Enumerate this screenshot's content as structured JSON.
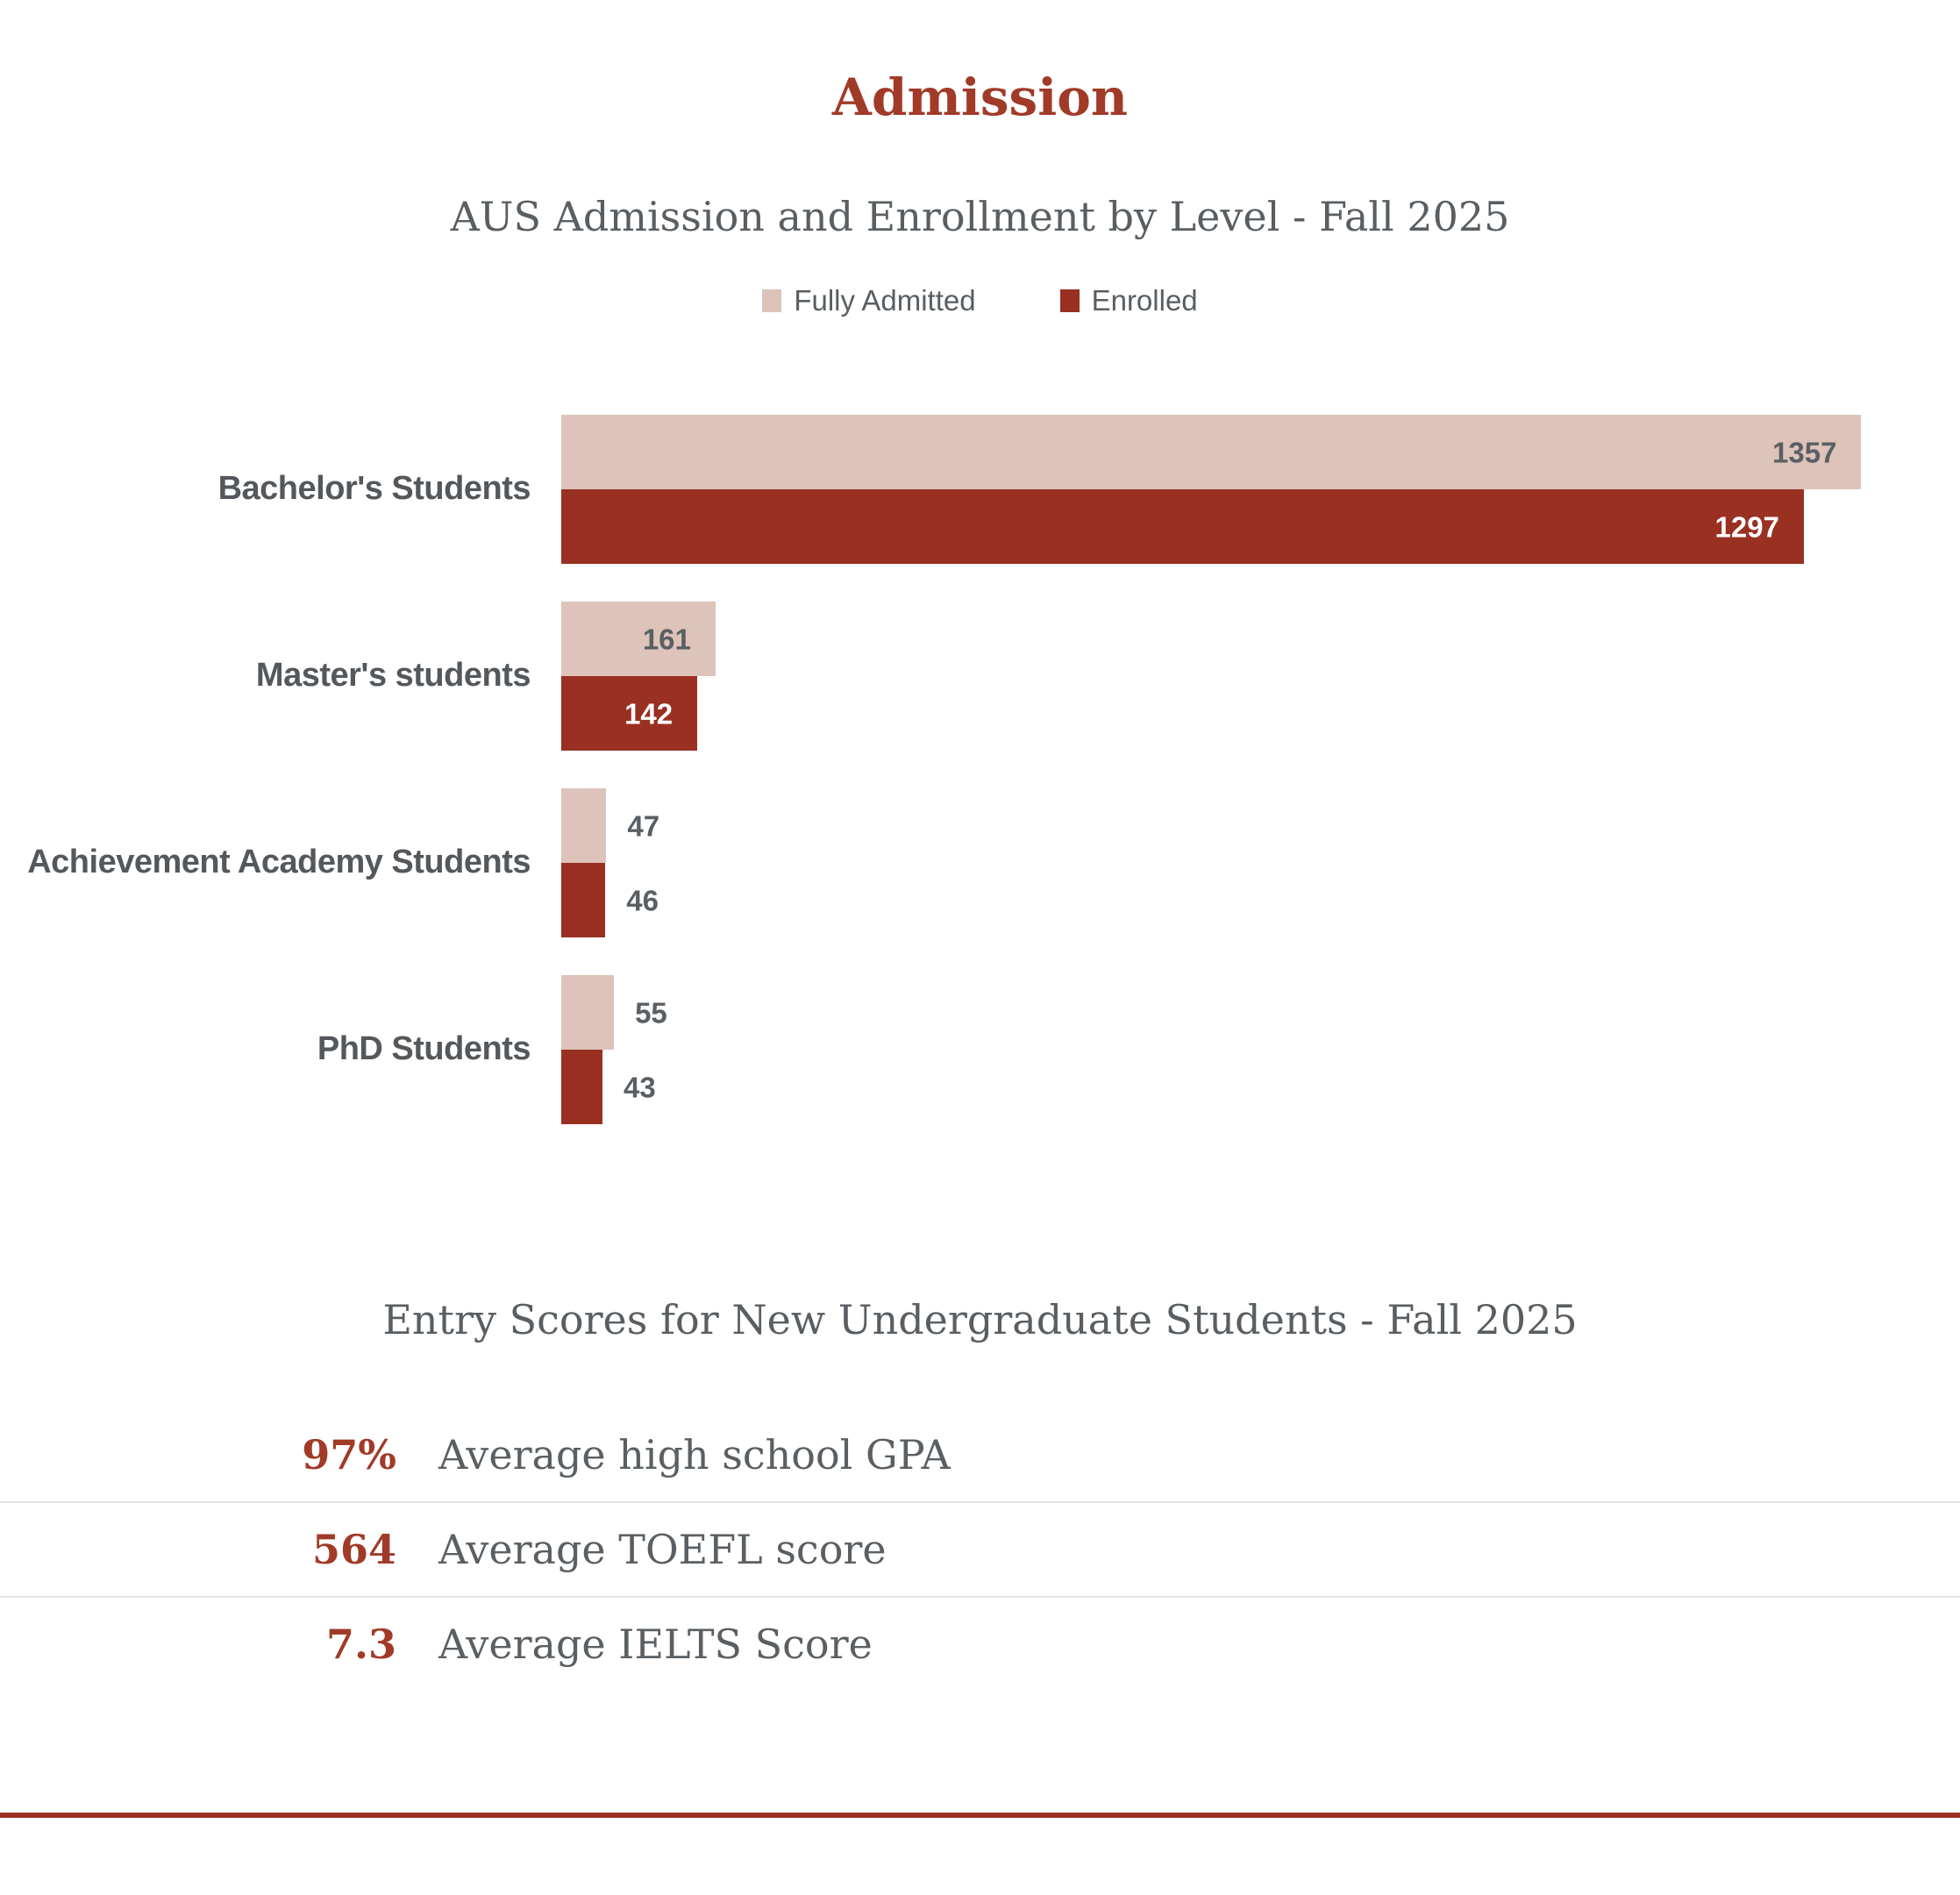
{
  "page": {
    "title": "Admission",
    "accent_color": "#a13a28",
    "footer_rule_color": "#993022"
  },
  "chart": {
    "title": "AUS Admission and Enrollment by Level - Fall 2025",
    "legend": [
      {
        "label": "Fully Admitted",
        "color": "#ddc3ba"
      },
      {
        "label": "Enrolled",
        "color": "#993022"
      }
    ]
  },
  "chart_data": {
    "type": "bar",
    "orientation": "horizontal",
    "title": "AUS Admission and Enrollment by Level - Fall 2025",
    "categories": [
      "Bachelor's Students",
      "Master's students",
      "Achievement Academy Students",
      "PhD Students"
    ],
    "series": [
      {
        "name": "Fully Admitted",
        "color": "#ddc3ba",
        "values": [
          1357,
          161,
          47,
          55
        ]
      },
      {
        "name": "Enrolled",
        "color": "#993022",
        "values": [
          1297,
          142,
          46,
          43
        ]
      }
    ],
    "xlim": [
      0,
      1460
    ],
    "label_inside_min": 100,
    "grid": false,
    "legend_position": "top",
    "data_labels": true,
    "value_label_color_light_bar": "#5a5f63",
    "value_label_color_dark_bar": "#ffffff"
  },
  "entry_scores": {
    "title": "Entry Scores for New Undergraduate Students - Fall 2025",
    "rows": [
      {
        "value": "97%",
        "label": "Average high school GPA"
      },
      {
        "value": "564",
        "label": "Average TOEFL score"
      },
      {
        "value": "7.3",
        "label": "Average IELTS Score"
      }
    ]
  }
}
